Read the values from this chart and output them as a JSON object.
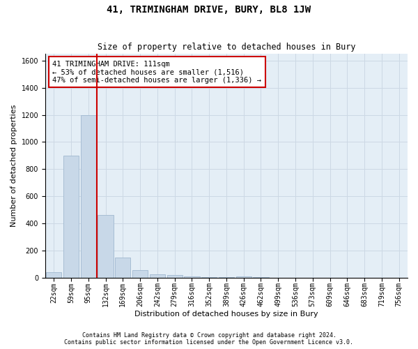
{
  "title": "41, TRIMINGHAM DRIVE, BURY, BL8 1JW",
  "subtitle": "Size of property relative to detached houses in Bury",
  "xlabel": "Distribution of detached houses by size in Bury",
  "ylabel": "Number of detached properties",
  "footer1": "Contains HM Land Registry data © Crown copyright and database right 2024.",
  "footer2": "Contains public sector information licensed under the Open Government Licence v3.0.",
  "bar_labels": [
    "22sqm",
    "59sqm",
    "95sqm",
    "132sqm",
    "169sqm",
    "206sqm",
    "242sqm",
    "279sqm",
    "316sqm",
    "352sqm",
    "389sqm",
    "426sqm",
    "462sqm",
    "499sqm",
    "536sqm",
    "573sqm",
    "609sqm",
    "646sqm",
    "683sqm",
    "719sqm",
    "756sqm"
  ],
  "bar_values": [
    40,
    900,
    1200,
    460,
    150,
    55,
    25,
    18,
    12,
    7,
    5,
    10,
    3,
    2,
    1,
    1,
    0,
    0,
    0,
    0,
    0
  ],
  "bar_color": "#c8d8e8",
  "bar_edge_color": "#a0b8d0",
  "grid_color": "#ccd8e4",
  "background_color": "#e4eef6",
  "vline_color": "#cc0000",
  "annotation_line1": "41 TRIMINGHAM DRIVE: 111sqm",
  "annotation_line2": "← 53% of detached houses are smaller (1,516)",
  "annotation_line3": "47% of semi-detached houses are larger (1,336) →",
  "annotation_box_color": "#ffffff",
  "annotation_box_edge": "#cc0000",
  "ylim": [
    0,
    1650
  ],
  "yticks": [
    0,
    200,
    400,
    600,
    800,
    1000,
    1200,
    1400,
    1600
  ],
  "title_fontsize": 10,
  "subtitle_fontsize": 8.5,
  "annotation_fontsize": 7.5,
  "tick_fontsize": 7,
  "ylabel_fontsize": 8,
  "xlabel_fontsize": 8
}
